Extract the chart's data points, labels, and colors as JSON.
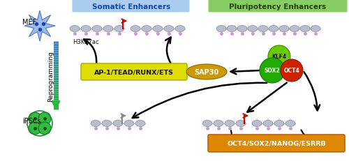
{
  "bg_color": "#ffffff",
  "title_somatic": "Somatic Enhancers",
  "title_pluripotency": "Pluripotency Enhancers",
  "somatic_bg": "#aaccee",
  "pluripotency_bg": "#88cc66",
  "label_mef": "MEF",
  "label_ipscs": "iPSCs",
  "label_reprogramming": "Reprogramming",
  "label_h3k27ac": "H3K27ac",
  "label_ap1": "AP-1/TEAD/RUNX/ETS",
  "label_sap30": "SAP30",
  "label_klf4": "KLF4",
  "label_sox2": "SOX2",
  "label_oct4": "OCT4",
  "label_oct4sox2": "OCT4/SOX2/NANOG/ESRRB",
  "color_ap1_fill": "#dddd00",
  "color_ap1_edge": "#aaaa00",
  "color_sap30_fill": "#cc9900",
  "color_sap30_edge": "#886600",
  "color_klf4_fill": "#66cc00",
  "color_klf4_edge": "#448800",
  "color_sox2_fill": "#22aa00",
  "color_sox2_edge": "#117700",
  "color_oct4_fill": "#cc2200",
  "color_oct4_edge": "#881100",
  "color_oct4sox2_fill": "#dd8800",
  "color_oct4sox2_edge": "#aa5500",
  "nuc_fill": "#b8bece",
  "nuc_edge": "#888899",
  "dot_color": "#cc99cc",
  "red_flag": "#cc0000",
  "gray_flag": "#888888",
  "arrow_lw": 1.8,
  "arrow_ms": 14
}
